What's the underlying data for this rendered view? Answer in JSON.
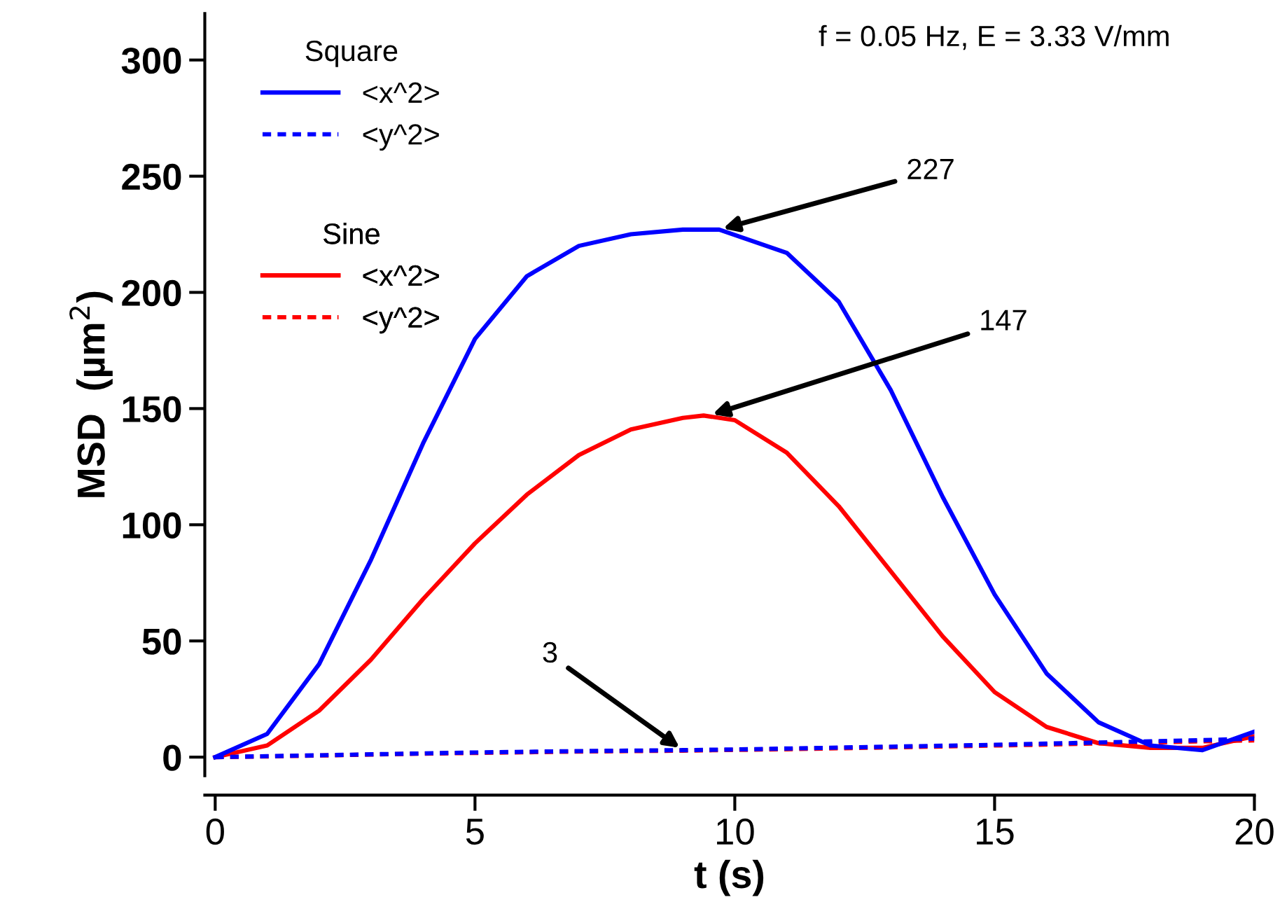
{
  "chart_data": {
    "type": "line",
    "xlabel": "t (s)",
    "ylabel": "MSD  (µm$^{2}$)",
    "xlim": [
      -0.2,
      20
    ],
    "ylim": [
      -8,
      320
    ],
    "xticks": [
      0,
      5,
      10,
      15,
      20
    ],
    "yticks": [
      0,
      50,
      100,
      150,
      200,
      250,
      300
    ],
    "grid": false,
    "legend": "top left",
    "legend_title": [
      "Square",
      "Sine"
    ],
    "x": [
      0,
      1,
      2,
      3,
      4,
      5,
      6,
      7,
      8,
      9,
      10,
      11,
      12,
      13,
      14,
      15,
      16,
      17,
      18,
      19,
      20
    ],
    "series": [
      {
        "name": "<x^2>",
        "color": "#0000ff",
        "line_style": "solid",
        "x": [
          0,
          1,
          2,
          3,
          4,
          5,
          6,
          7,
          8,
          9,
          9.7,
          11,
          12,
          13,
          14,
          15,
          16,
          17,
          18,
          19,
          20
        ],
        "values": [
          0,
          10,
          40,
          85,
          135,
          180,
          207,
          220,
          225,
          227,
          227,
          217,
          196,
          158,
          112,
          70,
          36,
          15,
          5,
          3,
          11
        ]
      },
      {
        "name": "<y^2>",
        "color": "#0000ff",
        "line_style": "dotted",
        "values": [
          0,
          0.4,
          0.8,
          1.2,
          1.6,
          2,
          2.3,
          2.6,
          2.8,
          3,
          3.3,
          3.7,
          4.1,
          4.5,
          4.9,
          5.3,
          5.8,
          6.3,
          6.8,
          7.3,
          8
        ]
      },
      {
        "name": "<x^2>",
        "color": "#ff0000",
        "line_style": "solid",
        "x": [
          0,
          1,
          2,
          3,
          4,
          5,
          6,
          7,
          8,
          9,
          9.4,
          10,
          11,
          12,
          13,
          14,
          15,
          16,
          17,
          18,
          19,
          20
        ],
        "values": [
          0,
          5,
          20,
          42,
          68,
          92,
          113,
          130,
          141,
          146,
          147,
          145,
          131,
          108,
          80,
          52,
          28,
          13,
          6,
          4,
          4,
          9
        ]
      },
      {
        "name": "<y^2>",
        "color": "#ff0000",
        "line_style": "dotted",
        "values": [
          0,
          0.3,
          0.7,
          1.1,
          1.5,
          1.8,
          2.1,
          2.4,
          2.6,
          2.8,
          3.1,
          3.4,
          3.8,
          4.2,
          4.6,
          5,
          5.4,
          5.9,
          6.3,
          6.8,
          7.2
        ]
      }
    ],
    "annotations": [
      "f = 0.05 Hz, E = 3.33 V/mm",
      {
        "text": "227",
        "x": 9.7,
        "y": 227
      },
      {
        "text": "147",
        "x": 9.5,
        "y": 147
      },
      {
        "text": "3",
        "x": 9,
        "y": 3
      }
    ]
  }
}
